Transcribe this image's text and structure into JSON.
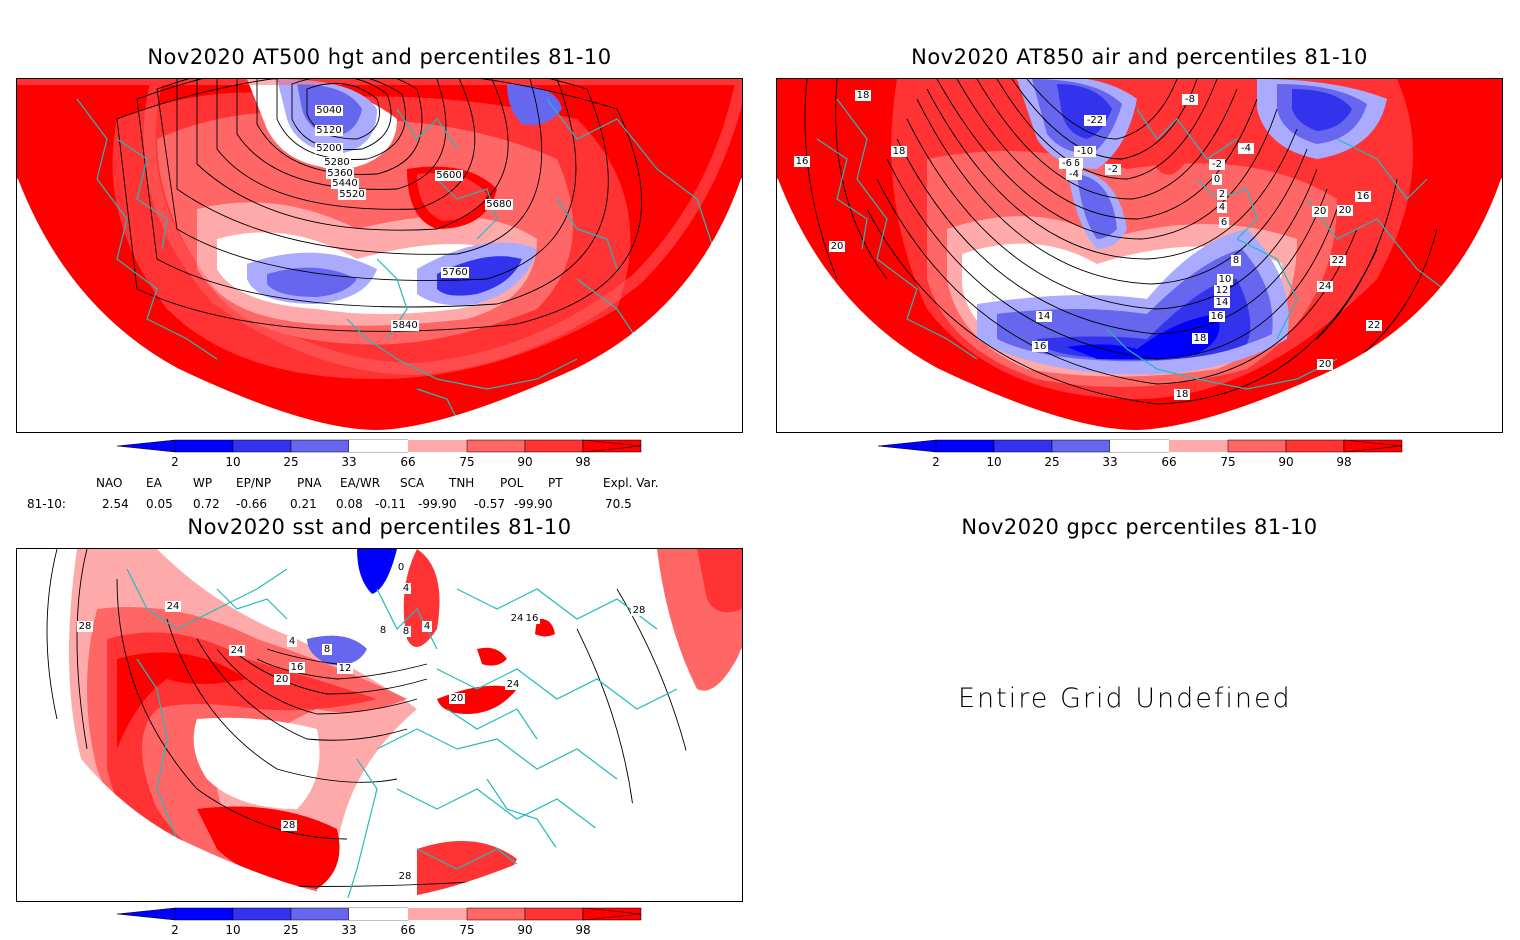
{
  "panels": {
    "hgt": {
      "title": "Nov2020 AT500 hgt and percentiles 81-10",
      "contour_labels": [
        "5040",
        "5120",
        "5200",
        "5280",
        "5360",
        "5440",
        "5520",
        "5600",
        "5680",
        "5760",
        "5840"
      ]
    },
    "air": {
      "title": "Nov2020 AT850 air and percentiles 81-10",
      "contour_labels": [
        "18",
        "18",
        "16",
        "20",
        "-8",
        "-6",
        "-22",
        "-10",
        "-6",
        "-4",
        "-2",
        "-4",
        "-2",
        "0",
        "2",
        "4",
        "6",
        "8",
        "10",
        "12",
        "14",
        "16",
        "18",
        "14",
        "16",
        "18",
        "20",
        "22",
        "24",
        "16",
        "20",
        "22",
        "20"
      ]
    },
    "sst": {
      "title": "Nov2020 sst and percentiles 81-10",
      "contour_labels": [
        "24",
        "28",
        "24",
        "4",
        "16",
        "20",
        "8",
        "12",
        "0",
        "4",
        "8",
        "8",
        "4",
        "24",
        "20",
        "24",
        "28",
        "28",
        "28",
        "16"
      ]
    },
    "gpcc": {
      "title": "Nov2020 gpcc percentiles 81-10",
      "message": "Entire Grid Undefined"
    }
  },
  "colorbar": {
    "ticks": [
      "2",
      "10",
      "25",
      "33",
      "66",
      "75",
      "90",
      "98"
    ],
    "colors": [
      "#0000ff",
      "#3333ee",
      "#6666ee",
      "#aaaaff",
      "#ffffff",
      "#ffaaaa",
      "#ff6666",
      "#ff3333",
      "#ff0000"
    ]
  },
  "indices": {
    "headers": [
      "NAO",
      "EA",
      "WP",
      "EP/NP",
      "PNA",
      "EA/WR",
      "SCA",
      "TNH",
      "POL",
      "PT",
      "Expl. Var."
    ],
    "row_label": "81-10:",
    "values": [
      "2.54",
      "0.05",
      "0.72",
      "-0.66",
      "0.21",
      "0.08",
      "-0.11",
      "-99.90",
      "-0.57",
      "-99.90",
      "70.5"
    ]
  },
  "colors": {
    "red": "#ff0000",
    "red2": "#ff3333",
    "red3": "#ff6666",
    "pink": "#ffaaaa",
    "lightblue": "#aaaaff",
    "blue": "#3333ee",
    "blue2": "#0000ff",
    "coast": "#22bbbb"
  }
}
